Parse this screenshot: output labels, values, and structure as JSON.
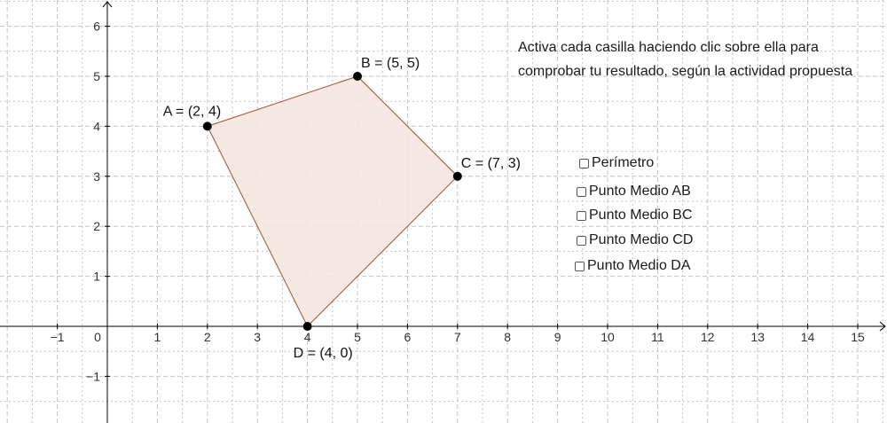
{
  "graph": {
    "x_ticks": [
      "−1",
      "0",
      "1",
      "2",
      "3",
      "4",
      "5",
      "6",
      "7",
      "8",
      "9",
      "10",
      "11",
      "12",
      "13",
      "14",
      "15"
    ],
    "y_ticks": [
      "−1",
      "1",
      "2",
      "3",
      "4",
      "5",
      "6"
    ],
    "colors": {
      "grid": "#c4c4c4",
      "axis": "#000000",
      "polygon_fill": "#f5e6e0",
      "polygon_stroke": "#a0522d",
      "point": "#000000"
    },
    "points": [
      {
        "name": "A",
        "x": 2,
        "y": 4,
        "label": "A = (2, 4)"
      },
      {
        "name": "B",
        "x": 5,
        "y": 5,
        "label": "B = (5, 5)"
      },
      {
        "name": "C",
        "x": 7,
        "y": 3,
        "label": "C = (7, 3)"
      },
      {
        "name": "D",
        "x": 4,
        "y": 0,
        "label": "D = (4, 0)"
      }
    ]
  },
  "instructions": "Activa cada casilla haciendo clic sobre ella para comprobar tu resultado, según la actividad propuesta",
  "checkboxes": [
    {
      "label": "Perímetro",
      "checked": false
    },
    {
      "label": "Punto Medio AB",
      "checked": false
    },
    {
      "label": "Punto Medio BC",
      "checked": false
    },
    {
      "label": "Punto Medio CD",
      "checked": false
    },
    {
      "label": "Punto Medio DA",
      "checked": false
    }
  ]
}
